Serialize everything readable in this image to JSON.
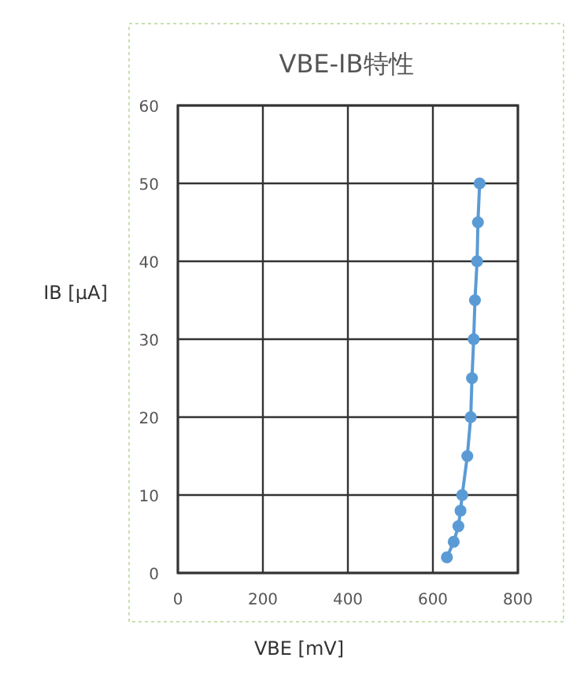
{
  "chart_data": {
    "type": "line",
    "title": "VBE-IB特性",
    "xlabel": "VBE [mV]",
    "ylabel": "IB [μA]",
    "x": [
      633,
      649,
      660,
      665,
      669,
      681,
      689,
      692,
      696,
      699,
      704,
      706,
      710
    ],
    "series": [
      {
        "color": "#5b9bd5",
        "values": [
          2,
          4,
          6,
          8,
          10,
          15,
          20,
          25,
          30,
          35,
          40,
          45,
          50
        ]
      }
    ],
    "xlim": [
      0,
      800
    ],
    "xticks": [
      0,
      200,
      400,
      600,
      800
    ],
    "ylim": [
      0,
      60
    ],
    "yticks": [
      0,
      10,
      20,
      30,
      40,
      50,
      60
    ],
    "grid": true,
    "marker": "circle",
    "line_style": "solid"
  }
}
